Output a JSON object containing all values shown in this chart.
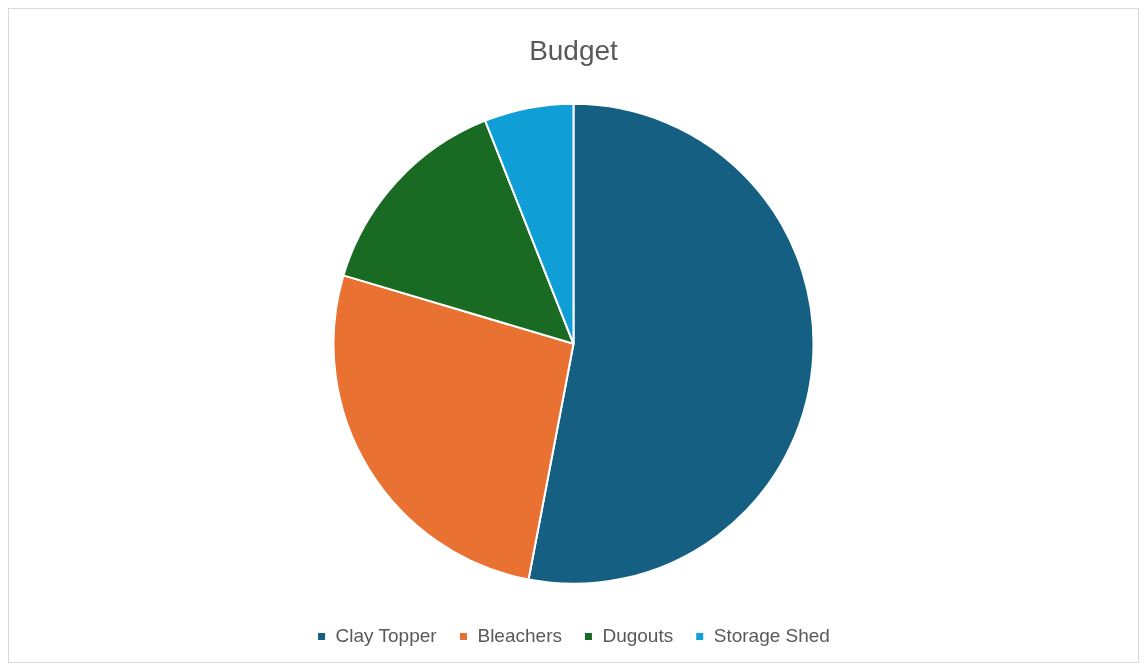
{
  "chart_data": {
    "type": "pie",
    "title": "Budget",
    "categories": [
      "Clay Topper",
      "Bleachers",
      "Dugouts",
      "Storage Shed"
    ],
    "values": [
      53,
      26.6,
      14.4,
      6
    ],
    "colors": [
      "#156082",
      "#e97132",
      "#196b24",
      "#0f9ed5"
    ],
    "legend": "bottom"
  }
}
